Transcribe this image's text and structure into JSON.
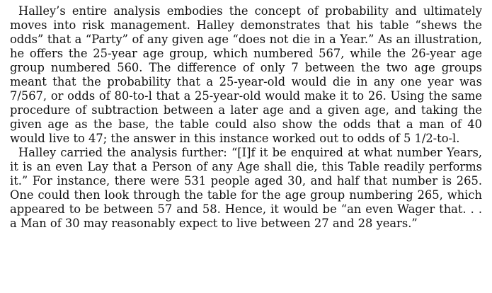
{
  "document": {
    "paragraphs": [
      "Halley’s entire analysis embodies the concept of probability and ultimately moves into risk management. Halley demonstrates that his table “shews the odds” that a “Party” of any given age “does not die in a Year.” As an illustration, he offers the 25-year age group, which numbered 567, while the 26-year age group numbered 560. The difference of only 7 between the two age groups meant that the probability that a 25-year-old would die in any one year was 7/567, or odds of 80-to-l that a 25-year-old would make it to 26. Using the same procedure of subtraction between a later age and a given age, and taking the given age as the base, the table could also show the odds that a man of 40 would live to 47; the answer in this instance worked out to odds of 5 1/2-to-l.",
      "Halley carried the analysis further: “[I]f it be enquired at what number Years, it is an even Lay that a Person of any Age shall die, this Table readily performs it.” For instance, there were 531 people aged 30, and half that number is 265. One could then look through the table for the age group numbering 265, which appeared to be between 57 and 58. Hence, it would be “an even Wager that. . . a Man of 30 may reasonably expect to live between 27 and 28 years.”"
    ]
  }
}
